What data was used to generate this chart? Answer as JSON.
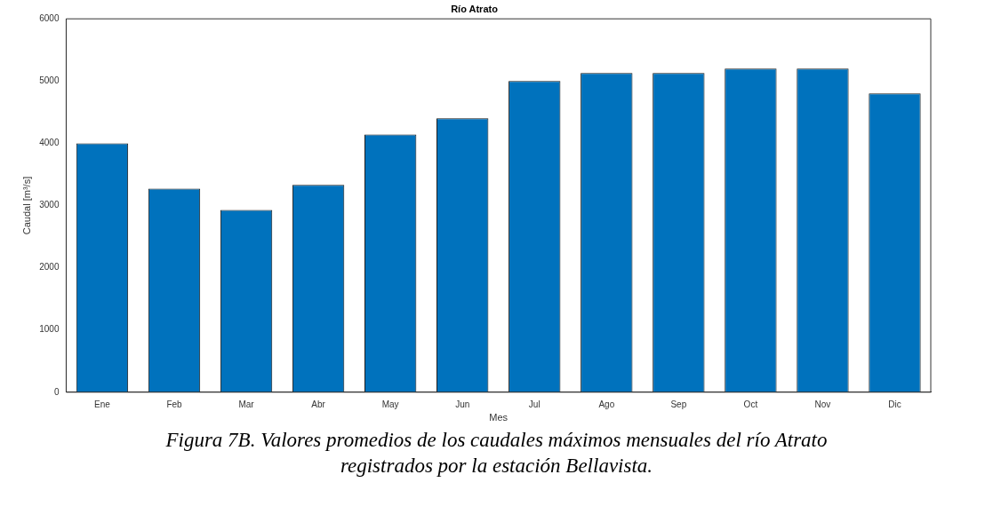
{
  "chart_data": {
    "type": "bar",
    "title": "Río Atrato",
    "xlabel": "Mes",
    "ylabel": "Caudal [m³/s]",
    "categories": [
      "Ene",
      "Feb",
      "Mar",
      "Abr",
      "May",
      "Jun",
      "Jul",
      "Ago",
      "Sep",
      "Oct",
      "Nov",
      "Dic"
    ],
    "values": [
      4000,
      3270,
      2930,
      3330,
      4140,
      4400,
      5000,
      5130,
      5130,
      5200,
      5200,
      4800
    ],
    "color": "#0072bd",
    "ylim": [
      0,
      6000
    ],
    "yticks": [
      0,
      1000,
      2000,
      3000,
      4000,
      5000,
      6000
    ],
    "grid": false,
    "legend": false,
    "annotations": [
      "Figura 7B. Valores promedios de los caudales máximos mensuales del río Atrato registrados por la estación Bellavista."
    ]
  }
}
